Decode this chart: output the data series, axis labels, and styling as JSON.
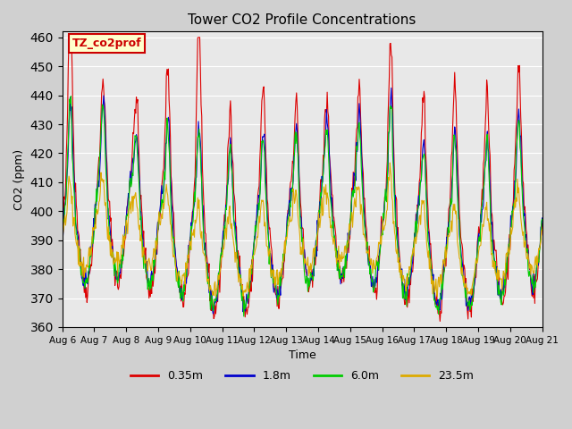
{
  "title": "Tower CO2 Profile Concentrations",
  "xlabel": "Time",
  "ylabel": "CO2 (ppm)",
  "ylim": [
    360,
    462
  ],
  "yticks": [
    360,
    370,
    380,
    390,
    400,
    410,
    420,
    430,
    440,
    450,
    460
  ],
  "plot_bg_color": "#e8e8e8",
  "fig_bg_color": "#d0d0d0",
  "line_colors": [
    "#dd0000",
    "#0000cc",
    "#00cc00",
    "#ddaa00"
  ],
  "line_labels": [
    "0.35m",
    "1.8m",
    "6.0m",
    "23.5m"
  ],
  "annotation_text": "TZ_co2prof",
  "annotation_bg": "#ffffcc",
  "annotation_edge": "#cc0000",
  "x_tick_labels": [
    "Aug 6",
    "Aug 7",
    "Aug 8",
    "Aug 9",
    "Aug 10",
    "Aug 11",
    "Aug 12",
    "Aug 13",
    "Aug 14",
    "Aug 15",
    "Aug 16",
    "Aug 17",
    "Aug 18",
    "Aug 19",
    "Aug 20",
    "Aug 21"
  ],
  "n_days": 15,
  "n_per_day": 48,
  "seed": 42
}
